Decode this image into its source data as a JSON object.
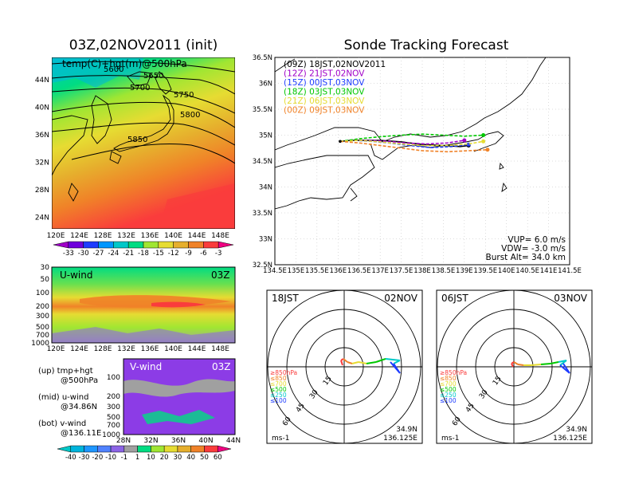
{
  "titles": {
    "left": "03Z,02NOV2011 (init)",
    "right": "Sonde Tracking Forecast"
  },
  "map500": {
    "label": "temp(C)+hgt(m)@500hPa",
    "contours": [
      "5600",
      "5650",
      "5700",
      "5750",
      "5800",
      "5850"
    ],
    "xticks": [
      "120E",
      "124E",
      "128E",
      "132E",
      "136E",
      "140E",
      "144E",
      "148E"
    ],
    "yticks": [
      "44N",
      "40N",
      "36N",
      "32N",
      "28N",
      "24N"
    ]
  },
  "temp_colorbar": {
    "labels": [
      "-33",
      "-30",
      "-27",
      "-24",
      "-21",
      "-18",
      "-15",
      "-12",
      "-9",
      "-6",
      "-3"
    ],
    "colors": [
      "#a000c8",
      "#6e00dc",
      "#1e3cff",
      "#0096ff",
      "#00c8c8",
      "#00dc82",
      "#a0e632",
      "#e6dc32",
      "#e6af2d",
      "#f08228",
      "#fa3c3c",
      "#f00082"
    ]
  },
  "uwind": {
    "label": "U-wind",
    "time": "03Z",
    "yticks": [
      "30",
      "50",
      "100",
      "200",
      "300",
      "500",
      "700",
      "1000"
    ],
    "xticks": [
      "120E",
      "124E",
      "128E",
      "132E",
      "136E",
      "140E",
      "144E",
      "148E"
    ]
  },
  "vwind": {
    "label": "V-wind",
    "time": "03Z",
    "yticks": [
      "100",
      "200",
      "300",
      "500",
      "700",
      "1000"
    ],
    "xticks": [
      "28N",
      "32N",
      "36N",
      "40N",
      "44N"
    ]
  },
  "notes": {
    "up": "(up) tmp+hgt",
    "up2": "@500hPa",
    "mid": "(mid) u-wind",
    "mid2": "@34.86N",
    "bot": "(bot) v-wind",
    "bot2": "@136.11E"
  },
  "wind_colorbar": {
    "labels": [
      "-40",
      "-30",
      "-20",
      "-10",
      "-1",
      "1",
      "10",
      "20",
      "30",
      "40",
      "50",
      "60"
    ],
    "colors": [
      "#00c8c8",
      "#00b4dc",
      "#1e96ff",
      "#5082ff",
      "#8c64e6",
      "#a0a0a0",
      "#00dc82",
      "#a0e632",
      "#e6dc32",
      "#e6af2d",
      "#f08228",
      "#fa3c3c",
      "#f00082"
    ]
  },
  "track": {
    "legend": [
      {
        "text": "(09Z)  18JST,02NOV2011",
        "color": "#000000"
      },
      {
        "text": "(12Z)  21JST,02NOV",
        "color": "#a000c8"
      },
      {
        "text": "(15Z)  00JST,03NOV",
        "color": "#1e3cff"
      },
      {
        "text": "(18Z)  03JST,03NOV",
        "color": "#00c800"
      },
      {
        "text": "(21Z)  06JST,03NOV",
        "color": "#e6dc32"
      },
      {
        "text": "(00Z)  09JST,03NOV",
        "color": "#f08228"
      }
    ],
    "xticks": [
      "134.5E",
      "135E",
      "135.5E",
      "136E",
      "136.5E",
      "137E",
      "137.5E",
      "138E",
      "138.5E",
      "139E",
      "139.5E",
      "140E",
      "140.5E",
      "141E",
      "141.5E"
    ],
    "yticks": [
      "36.5N",
      "36N",
      "35.5N",
      "35N",
      "34.5N",
      "34N",
      "33.5N",
      "33N",
      "32.5N"
    ],
    "info": [
      "VUP=  6.0  m/s",
      "VDW=  -3.0  m/s",
      "Burst Alt=  34.0  km"
    ],
    "series": [
      {
        "name": "09Z",
        "color": "#000000",
        "lon": [
          136.05,
          136.3,
          136.6,
          137.0,
          137.5,
          138.0,
          138.5,
          138.9,
          139.1
        ],
        "lat": [
          34.88,
          34.9,
          34.9,
          34.9,
          34.87,
          34.82,
          34.8,
          34.78,
          34.8
        ]
      },
      {
        "name": "12Z",
        "color": "#a000c8",
        "lon": [
          136.05,
          136.4,
          136.8,
          137.2,
          137.6,
          138.1,
          138.6,
          139.0
        ],
        "lat": [
          34.88,
          34.9,
          34.9,
          34.88,
          34.85,
          34.83,
          34.85,
          34.9
        ]
      },
      {
        "name": "15Z",
        "color": "#1e3cff",
        "lon": [
          136.05,
          136.4,
          136.8,
          137.2,
          137.7,
          138.2,
          138.7,
          139.1
        ],
        "lat": [
          34.88,
          34.9,
          34.88,
          34.85,
          34.8,
          34.76,
          34.78,
          34.82
        ]
      },
      {
        "name": "18Z",
        "color": "#00c800",
        "lon": [
          136.05,
          136.5,
          137.0,
          137.5,
          138.0,
          138.5,
          139.0,
          139.45
        ],
        "lat": [
          34.88,
          34.93,
          34.97,
          35.0,
          35.02,
          35.0,
          34.98,
          35.0
        ]
      },
      {
        "name": "21Z",
        "color": "#e6dc32",
        "lon": [
          136.05,
          136.5,
          137.0,
          137.5,
          138.0,
          138.6,
          139.1,
          139.45
        ],
        "lat": [
          34.88,
          34.9,
          34.87,
          34.83,
          34.8,
          34.8,
          34.83,
          34.88
        ]
      },
      {
        "name": "00Z",
        "color": "#f08228",
        "lon": [
          136.05,
          136.5,
          137.0,
          137.5,
          138.0,
          138.6,
          139.1,
          139.55
        ],
        "lat": [
          34.88,
          34.85,
          34.8,
          34.75,
          34.7,
          34.68,
          34.7,
          34.72
        ]
      }
    ]
  },
  "hodo_left": {
    "left_label": "18JST",
    "right_label": "02NOV",
    "unit": "ms-1",
    "lat": "34.9N",
    "lon": "136.125E",
    "rings": [
      "15",
      "30",
      "45",
      "60"
    ],
    "levels": [
      {
        "text": "≥850hPa",
        "color": "#fa3c3c"
      },
      {
        "text": "≤850",
        "color": "#f08228"
      },
      {
        "text": "≤700",
        "color": "#e6dc32"
      },
      {
        "text": "≤500",
        "color": "#00c800"
      },
      {
        "text": "≤250",
        "color": "#00c8c8"
      },
      {
        "text": "≤100",
        "color": "#1e3cff"
      }
    ]
  },
  "hodo_right": {
    "left_label": "06JST",
    "right_label": "03NOV",
    "unit": "ms-1",
    "lat": "34.9N",
    "lon": "136.125E",
    "rings": [
      "15",
      "30",
      "45",
      "60"
    ],
    "levels": [
      {
        "text": "≥850hPa",
        "color": "#fa3c3c"
      },
      {
        "text": "≤850",
        "color": "#f08228"
      },
      {
        "text": "≤700",
        "color": "#e6dc32"
      },
      {
        "text": "≤500",
        "color": "#00c800"
      },
      {
        "text": "≤250",
        "color": "#00c8c8"
      },
      {
        "text": "≤100",
        "color": "#1e3cff"
      }
    ]
  },
  "chart_data": [
    {
      "type": "line",
      "title": "Sonde Tracking Forecast",
      "xlabel": "",
      "ylabel": "",
      "xlim": [
        134.5,
        141.5
      ],
      "ylim": [
        32.5,
        36.5
      ],
      "series_note": "sonde trajectories by launch time (lon/lat)",
      "series": [
        {
          "name": "(09Z)  18JST,02NOV2011",
          "x": [
            136.05,
            136.3,
            136.6,
            137.0,
            137.5,
            138.0,
            138.5,
            138.9,
            139.1
          ],
          "y": [
            34.88,
            34.9,
            34.9,
            34.9,
            34.87,
            34.82,
            34.8,
            34.78,
            34.8
          ]
        },
        {
          "name": "(12Z)  21JST,02NOV",
          "x": [
            136.05,
            136.4,
            136.8,
            137.2,
            137.6,
            138.1,
            138.6,
            139.0
          ],
          "y": [
            34.88,
            34.9,
            34.9,
            34.88,
            34.85,
            34.83,
            34.85,
            34.9
          ]
        },
        {
          "name": "(15Z)  00JST,03NOV",
          "x": [
            136.05,
            136.4,
            136.8,
            137.2,
            137.7,
            138.2,
            138.7,
            139.1
          ],
          "y": [
            34.88,
            34.9,
            34.88,
            34.85,
            34.8,
            34.76,
            34.78,
            34.82
          ]
        },
        {
          "name": "(18Z)  03JST,03NOV",
          "x": [
            136.05,
            136.5,
            137.0,
            137.5,
            138.0,
            138.5,
            139.0,
            139.45
          ],
          "y": [
            34.88,
            34.93,
            34.97,
            35.0,
            35.02,
            35.0,
            34.98,
            35.0
          ]
        },
        {
          "name": "(21Z)  06JST,03NOV",
          "x": [
            136.05,
            136.5,
            137.0,
            137.5,
            138.0,
            138.6,
            139.1,
            139.45
          ],
          "y": [
            34.88,
            34.9,
            34.87,
            34.83,
            34.8,
            34.8,
            34.83,
            34.88
          ]
        },
        {
          "name": "(00Z)  09JST,03NOV",
          "x": [
            136.05,
            136.5,
            137.0,
            137.5,
            138.0,
            138.6,
            139.1,
            139.55
          ],
          "y": [
            34.88,
            34.85,
            34.8,
            34.75,
            34.7,
            34.68,
            34.7,
            34.72
          ]
        }
      ]
    },
    {
      "type": "heatmap",
      "title": "03Z,02NOV2011 (init)",
      "xlabel": "",
      "ylabel": "",
      "xlim": [
        120,
        148
      ],
      "ylim": [
        22,
        48
      ]
    }
  ]
}
